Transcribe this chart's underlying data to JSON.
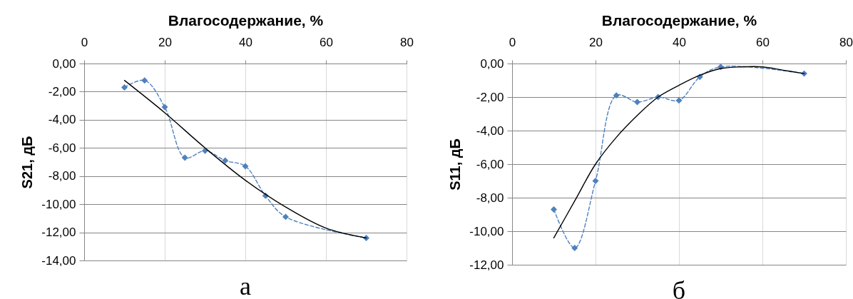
{
  "chart_data": [
    {
      "type": "line",
      "xlabel": "Влагосодержание, %",
      "ylabel": "S21, дБ",
      "annotations": [
        "а"
      ],
      "xlim": [
        0,
        80
      ],
      "xticks": [
        0,
        20,
        40,
        60,
        80
      ],
      "ylim": [
        -14,
        0
      ],
      "yticks": [
        {
          "value": 0,
          "label": "0,00"
        },
        {
          "value": -2,
          "label": "-2,00"
        },
        {
          "value": -4,
          "label": "-4,00"
        },
        {
          "value": -6,
          "label": "-6,00"
        },
        {
          "value": -8,
          "label": "-8,00"
        },
        {
          "value": -10,
          "label": "-10,00"
        },
        {
          "value": -12,
          "label": "-12,00"
        },
        {
          "value": -14,
          "label": "-14,00"
        }
      ],
      "grid": true,
      "series": [
        {
          "color": "#4f81bd",
          "marker": "diamond",
          "line_style": "dashed",
          "x": [
            10,
            15,
            20,
            25,
            30,
            35,
            40,
            45,
            50,
            70
          ],
          "values": [
            -1.7,
            -1.2,
            -3.1,
            -6.7,
            -6.2,
            -6.9,
            -7.3,
            -9.4,
            -10.9,
            -12.4
          ]
        },
        {
          "color": "#000000",
          "marker": "none",
          "line_style": "solid",
          "x": [
            10,
            20,
            30,
            40,
            50,
            60,
            70
          ],
          "values": [
            -1.2,
            -3.5,
            -6.0,
            -8.3,
            -10.2,
            -11.7,
            -12.4
          ]
        }
      ]
    },
    {
      "type": "line",
      "xlabel": "Влагосодержание, %",
      "ylabel": "S11, дБ",
      "annotations": [
        "б"
      ],
      "xlim": [
        0,
        80
      ],
      "xticks": [
        0,
        20,
        40,
        60,
        80
      ],
      "ylim": [
        -12,
        0
      ],
      "yticks": [
        {
          "value": 0,
          "label": "0,00"
        },
        {
          "value": -2,
          "label": "-2,00"
        },
        {
          "value": -4,
          "label": "-4,00"
        },
        {
          "value": -6,
          "label": "-6,00"
        },
        {
          "value": -8,
          "label": "-8,00"
        },
        {
          "value": -10,
          "label": "-10,00"
        },
        {
          "value": -12,
          "label": "-12,00"
        }
      ],
      "grid": true,
      "series": [
        {
          "color": "#4f81bd",
          "marker": "diamond",
          "line_style": "dashed",
          "x": [
            10,
            15,
            20,
            25,
            30,
            35,
            40,
            45,
            50,
            70
          ],
          "values": [
            -8.7,
            -11.0,
            -7.0,
            -1.9,
            -2.3,
            -2.0,
            -2.2,
            -0.8,
            -0.2,
            -0.6
          ]
        },
        {
          "color": "#000000",
          "marker": "none",
          "line_style": "solid",
          "x": [
            10,
            15,
            20,
            25,
            30,
            35,
            40,
            45,
            50,
            55,
            60,
            65,
            70
          ],
          "values": [
            -10.4,
            -8.2,
            -6.0,
            -4.4,
            -3.1,
            -2.0,
            -1.3,
            -0.7,
            -0.3,
            -0.2,
            -0.2,
            -0.4,
            -0.6
          ]
        }
      ]
    }
  ]
}
